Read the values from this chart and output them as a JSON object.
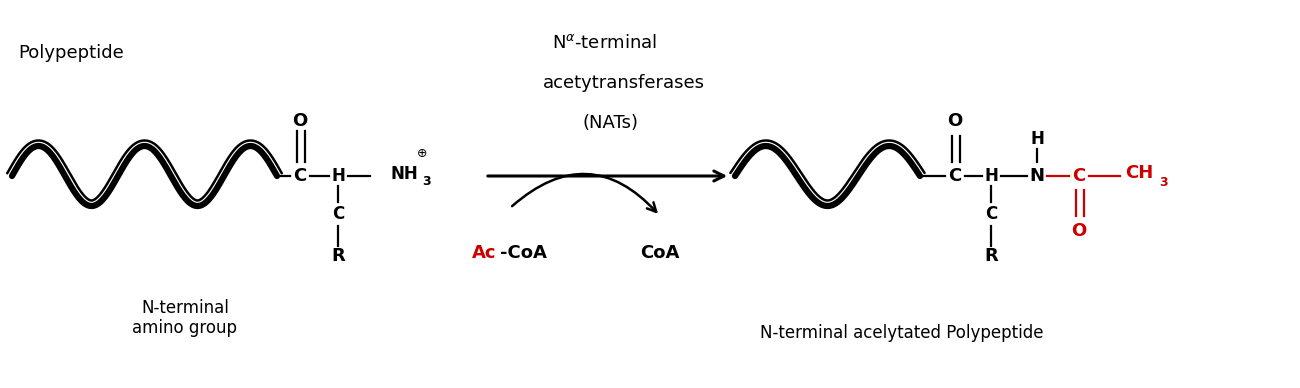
{
  "bg_color": "#ffffff",
  "black": "#000000",
  "red": "#cc0000",
  "figsize": [
    13.0,
    3.88
  ],
  "dpi": 100,
  "label_polypeptide": "Polypeptide",
  "label_nterminal": "N-terminal\namino group",
  "label_nats_line1": "N",
  "label_nats_alpha": "α",
  "label_nats_line1b": "-terminal",
  "label_nats_line2": "acetytransferases",
  "label_nats_line3": "(NATs)",
  "label_ac": "Ac",
  "label_coa1": "-CoA",
  "label_coa2": "CoA",
  "label_product": "N-terminal acelytated Polypeptide",
  "xlim": [
    0,
    13
  ],
  "ylim": [
    0,
    3.88
  ]
}
